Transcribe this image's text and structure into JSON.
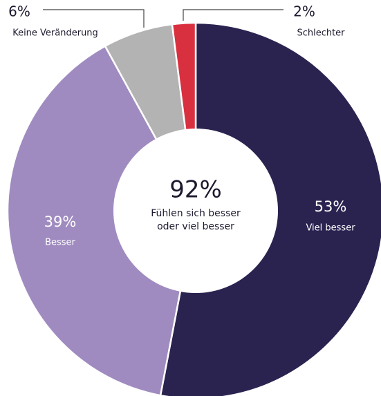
{
  "chart_data": {
    "type": "donut",
    "categories": [
      "Viel besser",
      "Besser",
      "Keine Veränderung",
      "Schlechter"
    ],
    "values": [
      53,
      39,
      6,
      2
    ],
    "value_labels": [
      "53%",
      "39%",
      "6%",
      "2%"
    ],
    "colors": [
      "#2a2350",
      "#9f8bc0",
      "#b3b3b3",
      "#d9303f"
    ],
    "center_text": "92%",
    "center_subtitle": "Fühlen sich besser oder viel besser"
  }
}
